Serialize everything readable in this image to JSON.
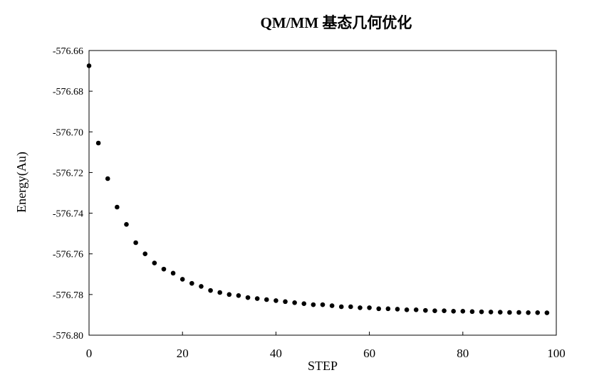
{
  "chart_data": {
    "type": "scatter",
    "title": "QM/MM 基态几何优化",
    "xlabel": "STEP",
    "ylabel": "Energy(Au)",
    "xlim": [
      0,
      100
    ],
    "ylim": [
      -576.8,
      -576.66
    ],
    "x_ticks": [
      "0",
      "20",
      "40",
      "60",
      "80",
      "100"
    ],
    "y_ticks": [
      "-576.66",
      "-576.68",
      "-576.70",
      "-576.72",
      "-576.74",
      "-576.76",
      "-576.78",
      "-576.80"
    ],
    "grid": false,
    "legend": "none",
    "marker_color": "#000000",
    "series": [
      {
        "x": [
          0,
          2,
          4,
          6,
          8,
          10,
          12,
          14,
          16,
          18,
          20,
          22,
          24,
          26,
          28,
          30,
          32,
          34,
          36,
          38,
          40,
          42,
          44,
          46,
          48,
          50,
          52,
          54,
          56,
          58,
          60,
          62,
          64,
          66,
          68,
          70,
          72,
          74,
          76,
          78,
          80,
          82,
          84,
          86,
          88,
          90,
          92,
          94,
          96,
          98
        ],
        "y": [
          -576.6675,
          -576.7055,
          -576.723,
          -576.737,
          -576.7455,
          -576.7545,
          -576.76,
          -576.7645,
          -576.7675,
          -576.7695,
          -576.7725,
          -576.7745,
          -576.776,
          -576.778,
          -576.779,
          -576.78,
          -576.7805,
          -576.7815,
          -576.782,
          -576.7825,
          -576.783,
          -576.7835,
          -576.784,
          -576.7845,
          -576.785,
          -576.785,
          -576.7855,
          -576.786,
          -576.786,
          -576.7865,
          -576.7865,
          -576.787,
          -576.787,
          -576.7872,
          -576.7875,
          -576.7875,
          -576.7878,
          -576.788,
          -576.788,
          -576.7882,
          -576.7882,
          -576.7884,
          -576.7885,
          -576.7886,
          -576.7887,
          -576.7888,
          -576.7888,
          -576.7889,
          -576.7889,
          -576.789
        ]
      }
    ]
  }
}
